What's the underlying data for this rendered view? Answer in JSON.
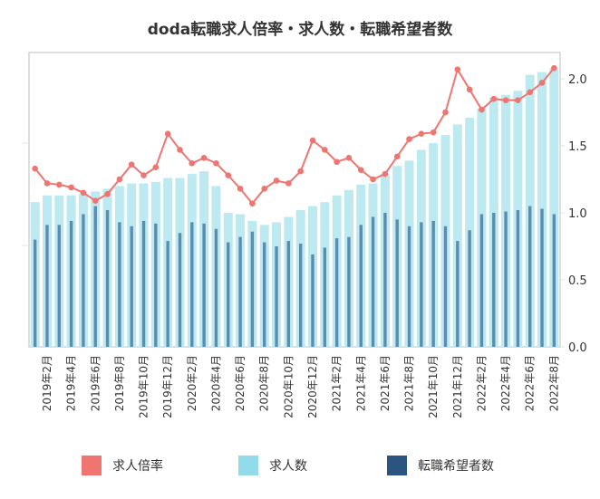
{
  "chart_data": {
    "type": "bar+line",
    "title": "doda転職求人倍率・求人数・転職希望者数",
    "tick_labels": [
      "2019年2月",
      "2019年4月",
      "2019年6月",
      "2019年8月",
      "2019年10月",
      "2019年12月",
      "2020年2月",
      "2020年4月",
      "2020年6月",
      "2020年8月",
      "2020年10月",
      "2020年12月",
      "2021年2月",
      "2021年4月",
      "2021年6月",
      "2021年8月",
      "2021年10月",
      "2021年12月",
      "2022年2月",
      "2022年4月",
      "2022年6月",
      "2022年8月"
    ],
    "right_axis": {
      "ylim": [
        0,
        2.2
      ],
      "ticks": [
        "0.0",
        "0.5",
        "1.0",
        "1.5",
        "2.0"
      ]
    },
    "left_axis": {
      "labels_shown": false
    },
    "series": [
      {
        "name": "求人倍率",
        "type": "line",
        "axis": "right",
        "color": "#f07470",
        "values": [
          1.33,
          1.22,
          1.21,
          1.19,
          1.15,
          1.09,
          1.14,
          1.25,
          1.36,
          1.28,
          1.34,
          1.59,
          1.47,
          1.37,
          1.41,
          1.37,
          1.28,
          1.18,
          1.07,
          1.18,
          1.24,
          1.22,
          1.31,
          1.54,
          1.47,
          1.38,
          1.41,
          1.32,
          1.25,
          1.29,
          1.42,
          1.55,
          1.59,
          1.6,
          1.75,
          2.07,
          1.92,
          1.77,
          1.85,
          1.84,
          1.84,
          1.9,
          1.97,
          2.08
        ]
      },
      {
        "name": "求人数",
        "type": "bar",
        "axis": "left",
        "color": "#bde9f1",
        "legend_color": "#92dcea",
        "values": [
          1.08,
          1.13,
          1.13,
          1.13,
          1.14,
          1.16,
          1.18,
          1.2,
          1.22,
          1.22,
          1.23,
          1.26,
          1.26,
          1.29,
          1.31,
          1.2,
          1.0,
          0.99,
          0.94,
          0.91,
          0.93,
          0.97,
          1.02,
          1.05,
          1.08,
          1.13,
          1.17,
          1.21,
          1.22,
          1.29,
          1.35,
          1.39,
          1.47,
          1.52,
          1.58,
          1.66,
          1.71,
          1.78,
          1.86,
          1.88,
          1.91,
          2.03,
          2.05,
          2.08
        ]
      },
      {
        "name": "転職希望者数",
        "type": "bar",
        "axis": "left",
        "color": "#5b8db0",
        "legend_color": "#2a5580",
        "values": [
          0.8,
          0.91,
          0.91,
          0.94,
          0.99,
          1.05,
          1.02,
          0.93,
          0.9,
          0.94,
          0.92,
          0.79,
          0.85,
          0.93,
          0.92,
          0.88,
          0.78,
          0.82,
          0.86,
          0.78,
          0.75,
          0.79,
          0.77,
          0.69,
          0.74,
          0.81,
          0.82,
          0.91,
          0.97,
          1.0,
          0.95,
          0.9,
          0.93,
          0.94,
          0.9,
          0.79,
          0.87,
          0.99,
          1.0,
          1.01,
          1.02,
          1.05,
          1.03,
          0.99
        ]
      }
    ],
    "legend_position": "bottom",
    "grid": false
  }
}
